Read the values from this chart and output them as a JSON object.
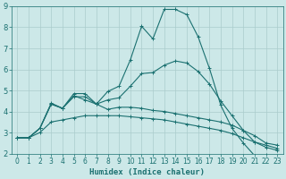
{
  "xlabel": "Humidex (Indice chaleur)",
  "ylabel": "",
  "background_color": "#cce8e8",
  "grid_color": "#aacccc",
  "line_color": "#1a7070",
  "xlim": [
    -0.5,
    23.5
  ],
  "ylim": [
    2,
    9
  ],
  "yticks": [
    2,
    3,
    4,
    5,
    6,
    7,
    8,
    9
  ],
  "xticks": [
    0,
    1,
    2,
    3,
    4,
    5,
    6,
    7,
    8,
    9,
    10,
    11,
    12,
    13,
    14,
    15,
    16,
    17,
    18,
    19,
    20,
    21,
    22,
    23
  ],
  "line1_x": [
    0,
    1,
    2,
    3,
    4,
    5,
    6,
    7,
    8,
    9,
    10,
    11,
    12,
    13,
    14,
    15,
    16,
    17,
    18,
    19,
    20,
    21,
    22,
    23
  ],
  "line1_y": [
    2.75,
    2.75,
    3.2,
    4.4,
    4.15,
    4.85,
    4.85,
    4.35,
    4.95,
    5.2,
    6.45,
    8.05,
    7.45,
    8.85,
    8.85,
    8.6,
    7.55,
    6.05,
    4.3,
    3.2,
    2.5,
    1.9,
    1.95,
    1.75
  ],
  "line2_x": [
    0,
    1,
    2,
    3,
    4,
    5,
    6,
    7,
    8,
    9,
    10,
    11,
    12,
    13,
    14,
    15,
    16,
    17,
    18,
    19,
    20,
    21,
    22,
    23
  ],
  "line2_y": [
    2.75,
    2.75,
    3.2,
    4.35,
    4.15,
    4.75,
    4.55,
    4.35,
    4.1,
    4.2,
    4.2,
    4.15,
    4.05,
    4.0,
    3.9,
    3.8,
    3.7,
    3.6,
    3.5,
    3.35,
    3.1,
    2.85,
    2.5,
    2.4
  ],
  "line3_x": [
    0,
    1,
    2,
    3,
    4,
    5,
    6,
    7,
    8,
    9,
    10,
    11,
    12,
    13,
    14,
    15,
    16,
    17,
    18,
    19,
    20,
    21,
    22,
    23
  ],
  "line3_y": [
    2.75,
    2.75,
    3.2,
    4.35,
    4.15,
    4.7,
    4.7,
    4.35,
    4.55,
    4.65,
    5.2,
    5.8,
    5.85,
    6.2,
    6.4,
    6.3,
    5.9,
    5.3,
    4.5,
    3.8,
    3.1,
    2.55,
    2.4,
    2.25
  ],
  "line4_x": [
    0,
    1,
    2,
    3,
    4,
    5,
    6,
    7,
    8,
    9,
    10,
    11,
    12,
    13,
    14,
    15,
    16,
    17,
    18,
    19,
    20,
    21,
    22,
    23
  ],
  "line4_y": [
    2.75,
    2.75,
    3.0,
    3.5,
    3.6,
    3.7,
    3.8,
    3.8,
    3.8,
    3.8,
    3.75,
    3.7,
    3.65,
    3.6,
    3.5,
    3.4,
    3.3,
    3.2,
    3.1,
    2.95,
    2.75,
    2.55,
    2.3,
    2.15
  ],
  "xlabel_fontsize": 6.5,
  "tick_fontsize": 5.5
}
